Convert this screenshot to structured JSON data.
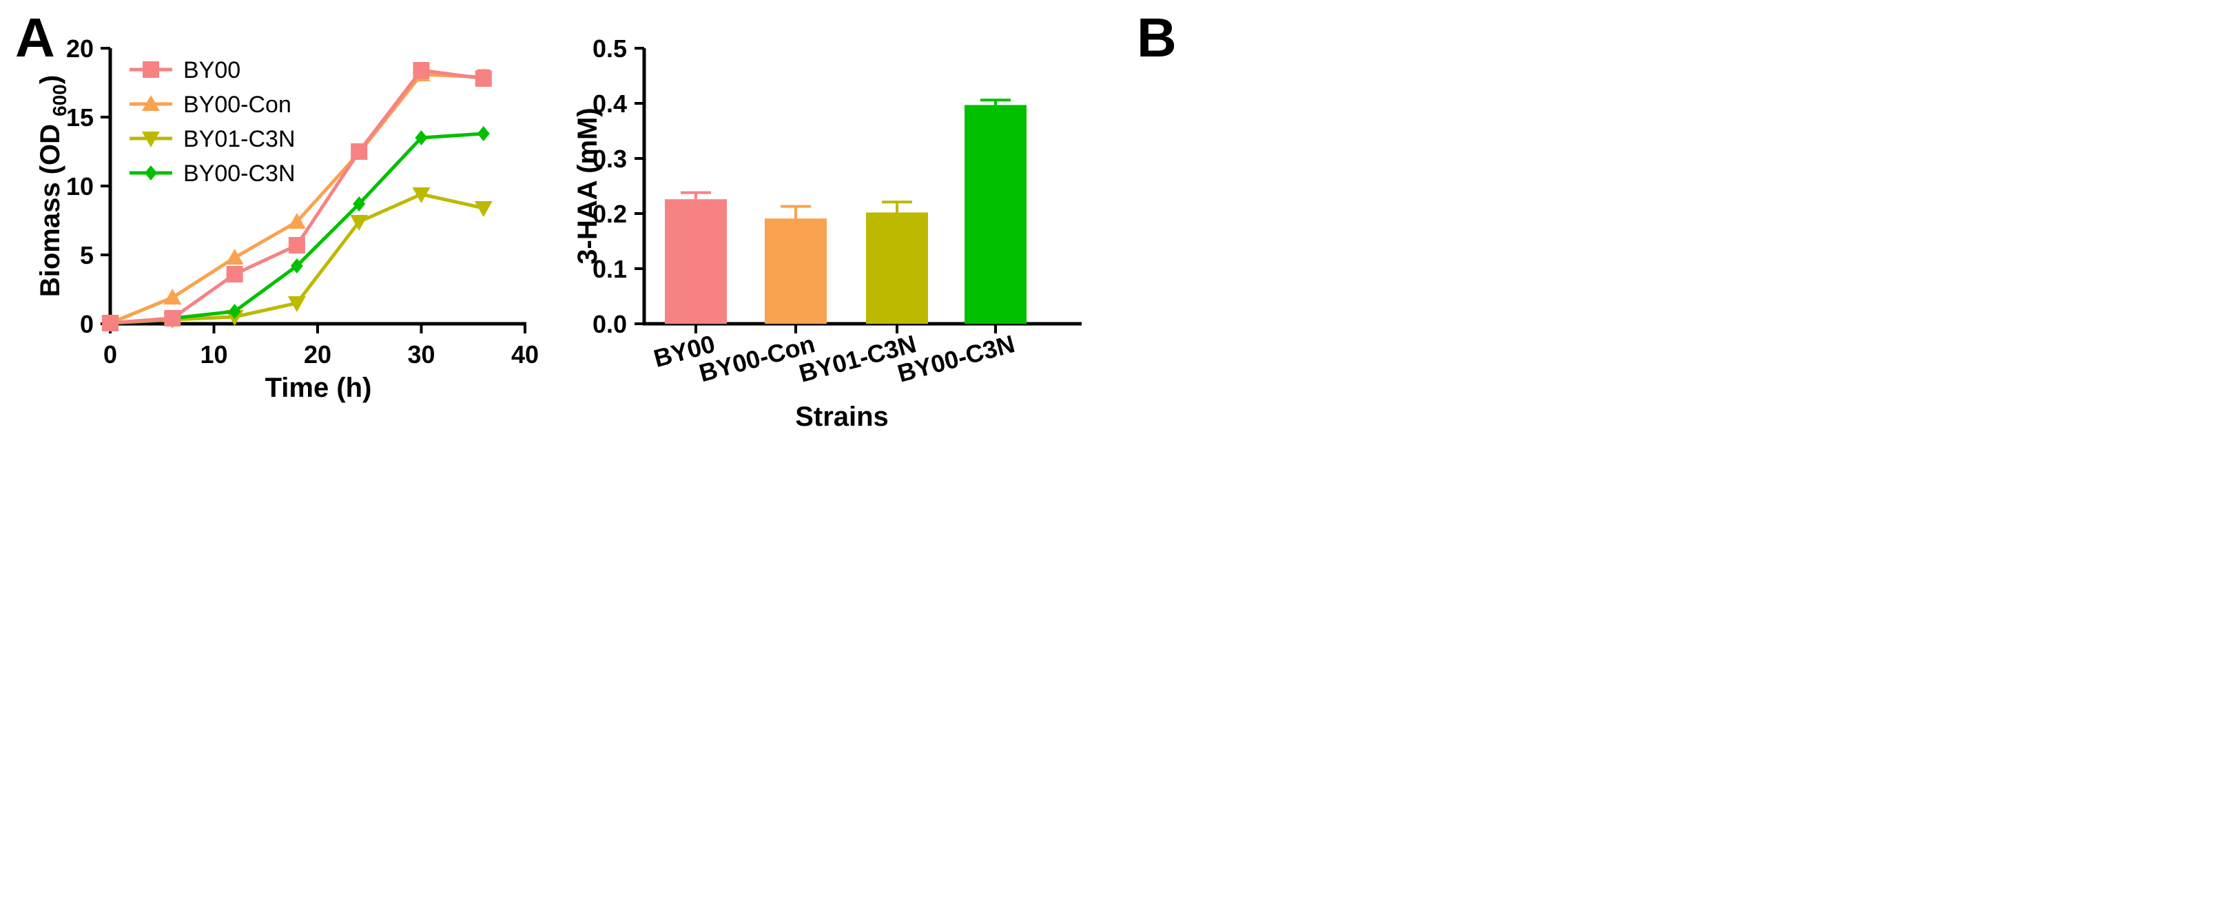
{
  "colors": {
    "BY00": "#F78283",
    "BY00-Con": "#F9A24F",
    "BY01-C3N": "#BDB900",
    "BY00-C3N": "#00C000",
    "axis": "#000000"
  },
  "chart_data": [
    {
      "panel": "A",
      "type": "line",
      "xlabel": "Time (h)",
      "ylabel_main": "Biomass (OD ",
      "ylabel_sub": "600",
      "ylabel_close": ")",
      "xlim": [
        0,
        40
      ],
      "ylim": [
        0,
        20
      ],
      "xticks": [
        0,
        10,
        20,
        30,
        40
      ],
      "yticks": [
        0,
        5,
        10,
        15,
        20
      ],
      "legend_position": "top-left",
      "x": [
        0,
        6,
        12,
        18,
        24,
        30,
        36
      ],
      "series": [
        {
          "name": "BY00",
          "marker": "square",
          "values": [
            0.05,
            0.4,
            3.6,
            5.7,
            12.5,
            18.4,
            17.8
          ],
          "err_last": 0.6
        },
        {
          "name": "BY00-Con",
          "marker": "triangle-up",
          "values": [
            0.05,
            1.9,
            4.8,
            7.4,
            12.4,
            18.1,
            17.9
          ],
          "err_last": 0.5
        },
        {
          "name": "BY01-C3N",
          "marker": "triangle-down",
          "values": [
            0.05,
            0.3,
            0.5,
            1.5,
            7.4,
            9.4,
            8.4
          ],
          "err_last": 0
        },
        {
          "name": "BY00-C3N",
          "marker": "diamond",
          "values": [
            0.05,
            0.4,
            0.9,
            4.2,
            8.7,
            13.5,
            13.8
          ],
          "err_last": 0
        }
      ]
    },
    {
      "panel": "B",
      "type": "bar",
      "xlabel": "Strains",
      "ylabel": "3-HAA (mM)",
      "ylim": [
        0,
        0.5
      ],
      "yticks": [
        "0.0",
        "0.1",
        "0.2",
        "0.3",
        "0.4",
        "0.5"
      ],
      "categories": [
        "BY00",
        "BY00-Con",
        "BY01-C3N",
        "BY00-C3N"
      ],
      "values": [
        0.226,
        0.191,
        0.202,
        0.397
      ],
      "errors": [
        0.012,
        0.022,
        0.019,
        0.009
      ]
    }
  ]
}
